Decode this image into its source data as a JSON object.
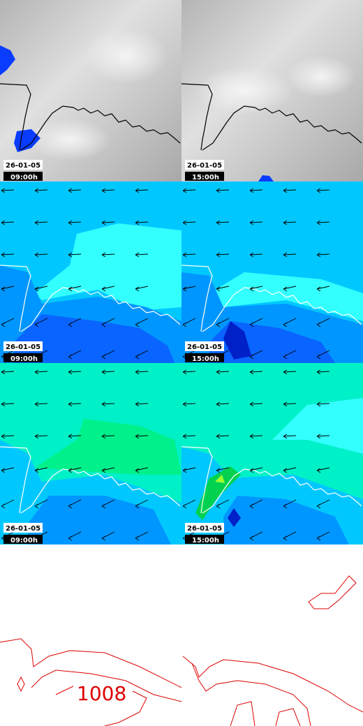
{
  "panels": [
    {
      "date": "26-01-05",
      "time": "09:00h"
    },
    {
      "date": "26-01-05",
      "time": "15:00h"
    },
    {
      "date": "26-01-05",
      "time": "09:00h"
    },
    {
      "date": "26-01-05",
      "time": "15:00h"
    },
    {
      "date": "26-01-05",
      "time": "09:00h"
    },
    {
      "date": "26-01-05",
      "time": "15:00h"
    }
  ],
  "isobar_label": "1008"
}
